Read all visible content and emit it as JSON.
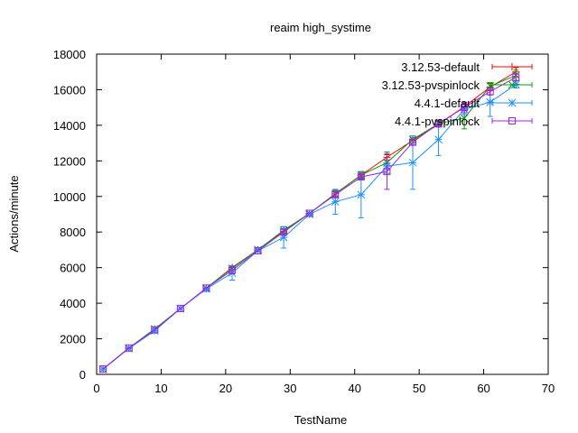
{
  "chart_data": {
    "type": "line",
    "title": "reaim high_systime",
    "xlabel": "TestName",
    "ylabel": "Actions/minute",
    "xlim": [
      0,
      70
    ],
    "ylim": [
      0,
      18000
    ],
    "xticks": [
      0,
      10,
      20,
      30,
      40,
      50,
      60,
      70
    ],
    "yticks": [
      0,
      2000,
      4000,
      6000,
      8000,
      10000,
      12000,
      14000,
      16000,
      18000
    ],
    "xtick_labels": [
      "0",
      "10",
      "20",
      "30",
      "40",
      "50",
      "60",
      "70"
    ],
    "ytick_labels": [
      "0",
      "2000",
      "4000",
      "6000",
      "8000",
      "10000",
      "12000",
      "14000",
      "16000",
      "18000"
    ],
    "grid": false,
    "legend_position": "top-right",
    "series": [
      {
        "name": "3.12.53-default",
        "color": "#ff0000",
        "marker": "plus",
        "x": [
          1,
          5,
          9,
          13,
          17,
          21,
          25,
          29,
          33,
          37,
          41,
          45,
          49,
          53,
          57,
          61,
          65
        ],
        "y": [
          300,
          1480,
          2550,
          3700,
          4850,
          6000,
          7000,
          8050,
          9050,
          10150,
          11200,
          12200,
          13150,
          14050,
          15050,
          16150,
          17000
        ],
        "err": [
          0,
          0,
          0,
          0,
          0,
          100,
          0,
          100,
          0,
          150,
          150,
          150,
          150,
          150,
          200,
          200,
          250
        ]
      },
      {
        "name": "3.12.53-pvspinlock",
        "color": "#00a000",
        "marker": "cross",
        "x": [
          1,
          5,
          9,
          13,
          17,
          21,
          25,
          29,
          33,
          37,
          41,
          45,
          49,
          53,
          57,
          61,
          65
        ],
        "y": [
          300,
          1480,
          2550,
          3700,
          4850,
          5950,
          7000,
          8100,
          9050,
          10150,
          11200,
          11900,
          13200,
          14100,
          14400,
          16200,
          16800
        ],
        "err": [
          0,
          0,
          0,
          0,
          0,
          150,
          0,
          200,
          0,
          200,
          200,
          600,
          200,
          200,
          600,
          200,
          300
        ]
      },
      {
        "name": "4.4.1-default",
        "color": "#1e90ff",
        "marker": "star",
        "x": [
          1,
          5,
          9,
          13,
          17,
          21,
          25,
          29,
          33,
          37,
          41,
          45,
          49,
          53,
          57,
          61,
          65
        ],
        "y": [
          300,
          1450,
          2450,
          3700,
          4800,
          5700,
          6950,
          7700,
          9000,
          9700,
          10100,
          11700,
          11900,
          13200,
          14900,
          15300,
          16300
        ],
        "err": [
          0,
          0,
          100,
          0,
          0,
          400,
          0,
          600,
          0,
          700,
          1300,
          200,
          1500,
          900,
          300,
          800,
          200
        ]
      },
      {
        "name": "4.4.1-pvspinlock",
        "color": "#a020f0",
        "marker": "square",
        "x": [
          1,
          5,
          9,
          13,
          17,
          21,
          25,
          29,
          33,
          37,
          41,
          45,
          49,
          53,
          57,
          61,
          65
        ],
        "y": [
          300,
          1480,
          2500,
          3700,
          4850,
          5850,
          6950,
          8000,
          9050,
          10100,
          11100,
          11400,
          13050,
          14100,
          15000,
          15900,
          16700
        ],
        "err": [
          0,
          0,
          0,
          0,
          0,
          200,
          0,
          150,
          0,
          150,
          150,
          1000,
          150,
          150,
          300,
          200,
          200
        ]
      }
    ]
  }
}
